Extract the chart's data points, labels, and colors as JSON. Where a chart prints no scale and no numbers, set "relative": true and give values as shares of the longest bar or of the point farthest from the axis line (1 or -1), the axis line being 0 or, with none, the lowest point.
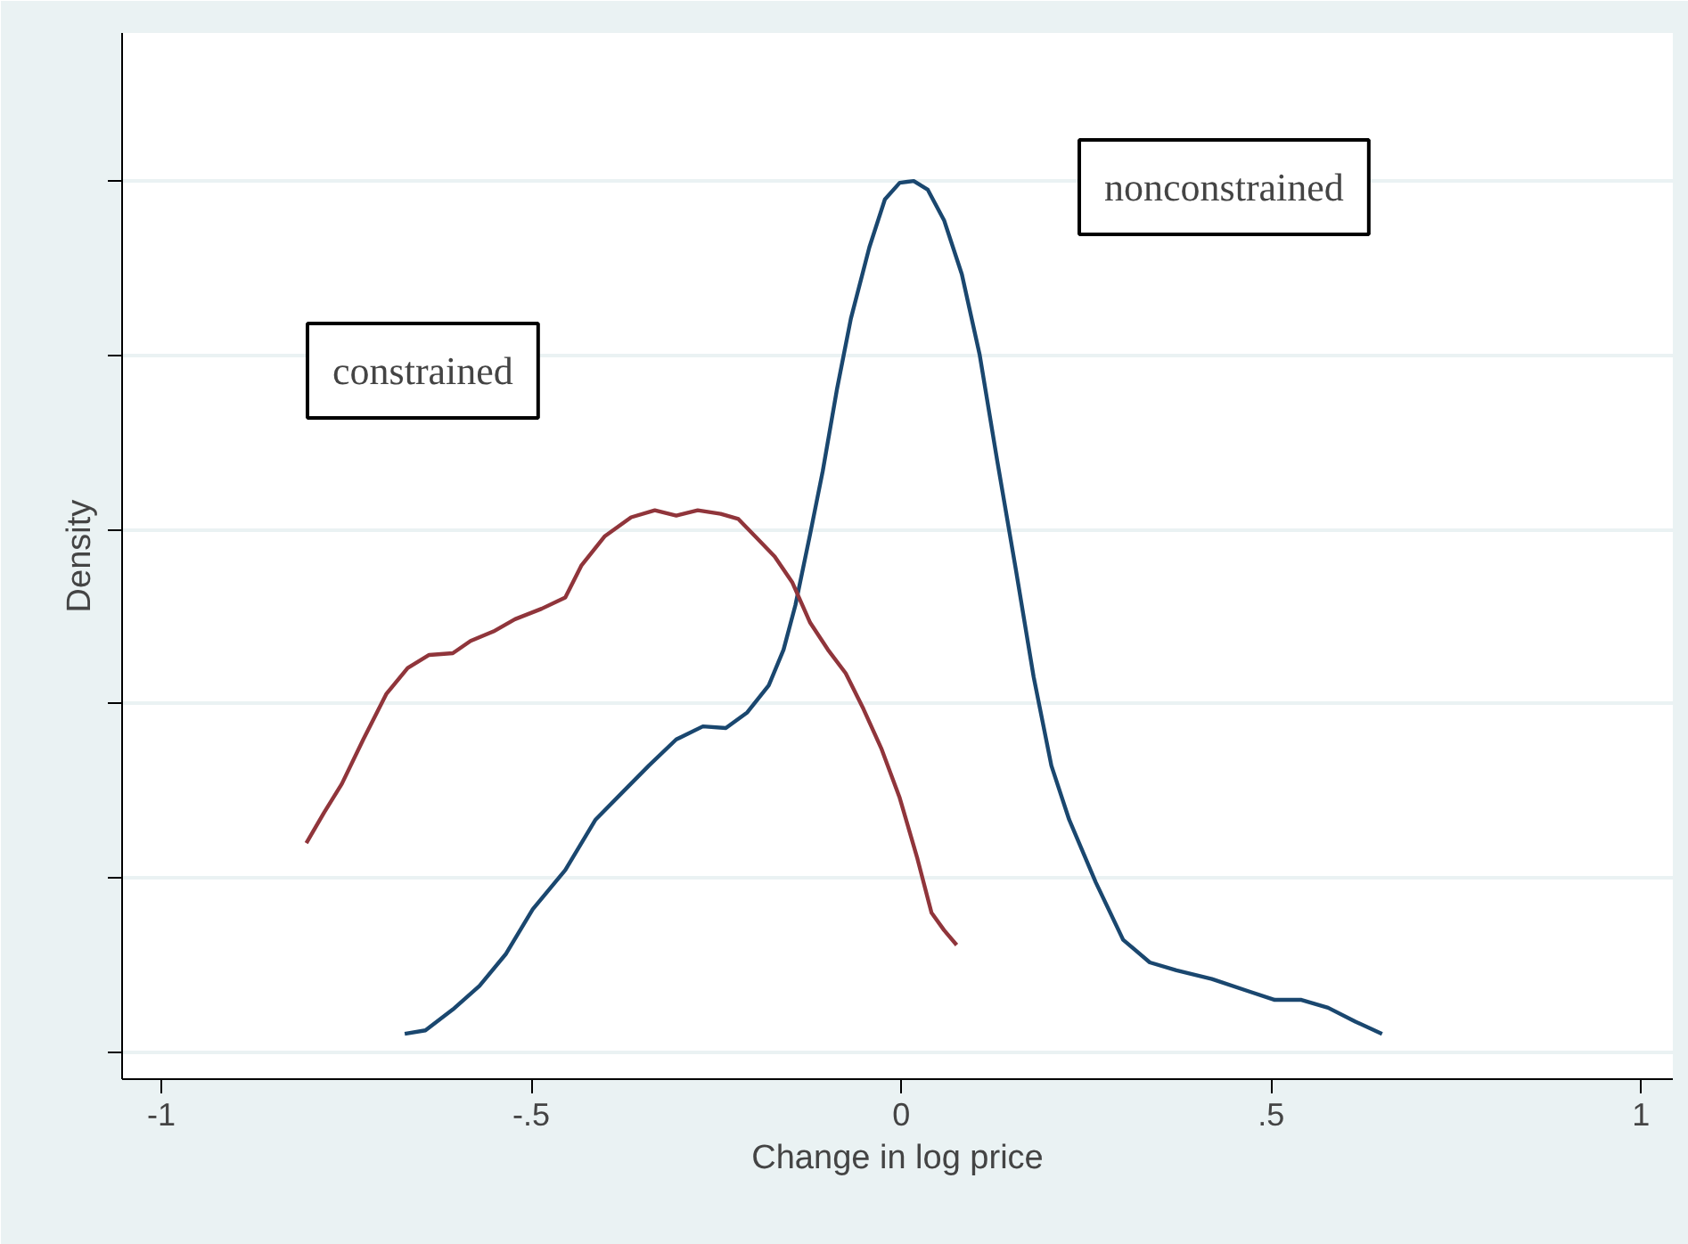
{
  "chart_data": {
    "type": "line",
    "relative": true,
    "xlabel": "Change in log price",
    "ylabel": "Density",
    "xlim": [
      -1.053,
      1.043
    ],
    "xticks": [
      -1,
      {
        "value": -0.5,
        "label": "-.5"
      },
      0,
      {
        "value": 0.5,
        "label": ".5"
      },
      1
    ],
    "grid": "y",
    "annotations": [
      "nonconstrained",
      "constrained"
    ],
    "tick_labels": "x",
    "marker": "none",
    "line_style": "solid",
    "series": [
      {
        "color": "#1a476f",
        "x": [
          -0.671,
          -0.643,
          -0.606,
          -0.57,
          -0.534,
          -0.498,
          -0.454,
          -0.413,
          -0.377,
          -0.341,
          -0.304,
          -0.268,
          -0.237,
          -0.208,
          -0.179,
          -0.159,
          -0.143,
          -0.123,
          -0.106,
          -0.087,
          -0.068,
          -0.043,
          -0.022,
          -0.002,
          0.017,
          0.036,
          0.058,
          0.082,
          0.106,
          0.13,
          0.155,
          0.179,
          0.203,
          0.227,
          0.263,
          0.3,
          0.336,
          0.372,
          0.42,
          0.469,
          0.505,
          0.541,
          0.577,
          0.614,
          0.65
        ],
        "values": [
          0.021,
          0.025,
          0.049,
          0.076,
          0.113,
          0.164,
          0.209,
          0.267,
          0.298,
          0.329,
          0.359,
          0.374,
          0.372,
          0.39,
          0.421,
          0.462,
          0.513,
          0.595,
          0.667,
          0.76,
          0.842,
          0.924,
          0.979,
          0.998,
          1.0,
          0.99,
          0.955,
          0.893,
          0.801,
          0.678,
          0.554,
          0.431,
          0.329,
          0.267,
          0.195,
          0.129,
          0.103,
          0.094,
          0.084,
          0.07,
          0.06,
          0.06,
          0.051,
          0.035,
          0.021
        ]
      },
      {
        "color": "#90353b",
        "x": [
          -0.804,
          -0.78,
          -0.756,
          -0.727,
          -0.696,
          -0.667,
          -0.638,
          -0.606,
          -0.582,
          -0.551,
          -0.522,
          -0.486,
          -0.454,
          -0.432,
          -0.401,
          -0.365,
          -0.333,
          -0.304,
          -0.275,
          -0.244,
          -0.22,
          -0.196,
          -0.171,
          -0.147,
          -0.123,
          -0.099,
          -0.075,
          -0.051,
          -0.027,
          -0.002,
          0.022,
          0.041,
          0.058,
          0.075
        ],
        "values": [
          0.24,
          0.275,
          0.308,
          0.359,
          0.411,
          0.441,
          0.456,
          0.458,
          0.472,
          0.483,
          0.497,
          0.509,
          0.522,
          0.559,
          0.592,
          0.614,
          0.622,
          0.616,
          0.622,
          0.618,
          0.612,
          0.591,
          0.569,
          0.539,
          0.493,
          0.462,
          0.435,
          0.394,
          0.349,
          0.292,
          0.222,
          0.16,
          0.14,
          0.123
        ]
      }
    ]
  }
}
